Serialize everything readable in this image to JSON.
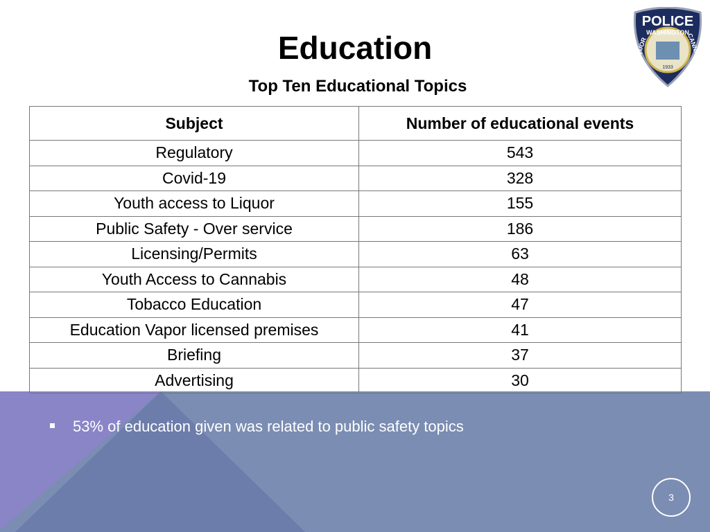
{
  "header": {
    "title": "Education",
    "subtitle": "Top Ten Educational Topics"
  },
  "logo": {
    "top": "POLICE",
    "arc": "WASHINGTON",
    "left": "LIQUOR",
    "right": "CANNABIS",
    "year": "1933"
  },
  "table": {
    "header": [
      "Subject",
      "Number of educational events"
    ],
    "rows": [
      [
        "Regulatory",
        543
      ],
      [
        "Covid-19",
        328
      ],
      [
        "Youth access to Liquor",
        155
      ],
      [
        "Public Safety - Over service",
        186
      ],
      [
        "Licensing/Permits",
        63
      ],
      [
        "Youth Access to Cannabis",
        48
      ],
      [
        "Tobacco Education",
        47
      ],
      [
        "Education Vapor licensed premises",
        41
      ],
      [
        "Briefing",
        37
      ],
      [
        "Advertising",
        30
      ]
    ]
  },
  "bullets": [
    "53% of education given was related to public safety topics"
  ],
  "page_number": "3"
}
